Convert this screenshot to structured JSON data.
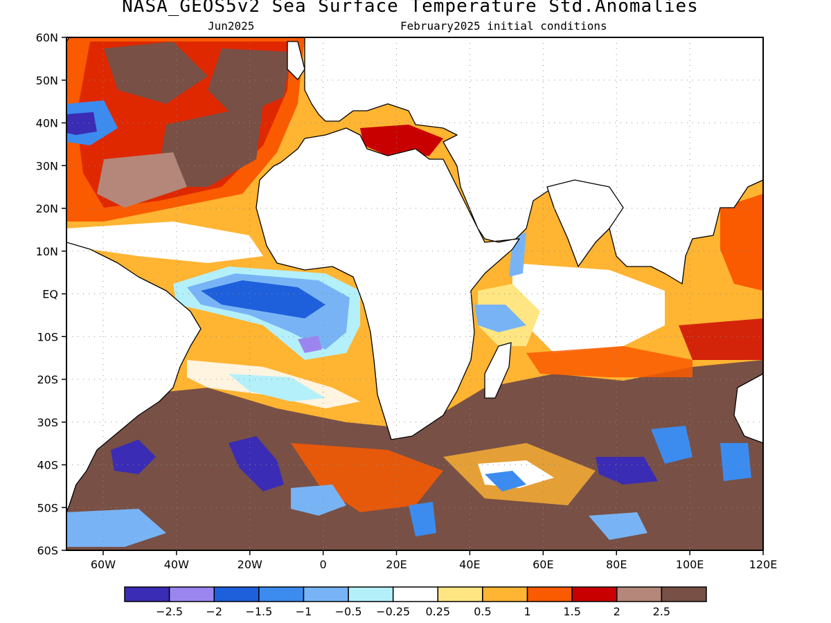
{
  "title": "NASA_GEOS5v2 Sea Surface Temperature Std.Anomalies",
  "subtitle_left": "Jun2025",
  "subtitle_right": "February2025 initial conditions",
  "map": {
    "lat_range": [
      -60,
      60
    ],
    "lon_range": [
      -70,
      120
    ],
    "grid_lines": "dotted",
    "lat_ticks": [
      {
        "value": 60,
        "label": "60N"
      },
      {
        "value": 50,
        "label": "50N"
      },
      {
        "value": 40,
        "label": "40N"
      },
      {
        "value": 30,
        "label": "30N"
      },
      {
        "value": 20,
        "label": "20N"
      },
      {
        "value": 10,
        "label": "10N"
      },
      {
        "value": 0,
        "label": "EQ"
      },
      {
        "value": -10,
        "label": "10S"
      },
      {
        "value": -20,
        "label": "20S"
      },
      {
        "value": -30,
        "label": "30S"
      },
      {
        "value": -40,
        "label": "40S"
      },
      {
        "value": -50,
        "label": "50S"
      },
      {
        "value": -60,
        "label": "60S"
      }
    ],
    "lon_ticks": [
      {
        "value": -60,
        "label": "60W"
      },
      {
        "value": -40,
        "label": "40W"
      },
      {
        "value": -20,
        "label": "20W"
      },
      {
        "value": 0,
        "label": "0"
      },
      {
        "value": 20,
        "label": "20E"
      },
      {
        "value": 40,
        "label": "40E"
      },
      {
        "value": 60,
        "label": "60E"
      },
      {
        "value": 80,
        "label": "80E"
      },
      {
        "value": 100,
        "label": "100E"
      },
      {
        "value": 120,
        "label": "120E"
      }
    ]
  },
  "colorbar": {
    "colors": [
      "#3a2cb4",
      "#9b86f0",
      "#1e5fdc",
      "#3c8cf0",
      "#78b4f5",
      "#b4f0fa",
      "#ffffff",
      "#ffe682",
      "#ffb432",
      "#fa5a00",
      "#c80000",
      "#b4877a",
      "#785046"
    ],
    "labels": [
      "−2.5",
      "−2",
      "−1.5",
      "−1",
      "−0.5",
      "−0.25",
      "0.25",
      "0.5",
      "1",
      "1.5",
      "2",
      "2.5"
    ]
  }
}
